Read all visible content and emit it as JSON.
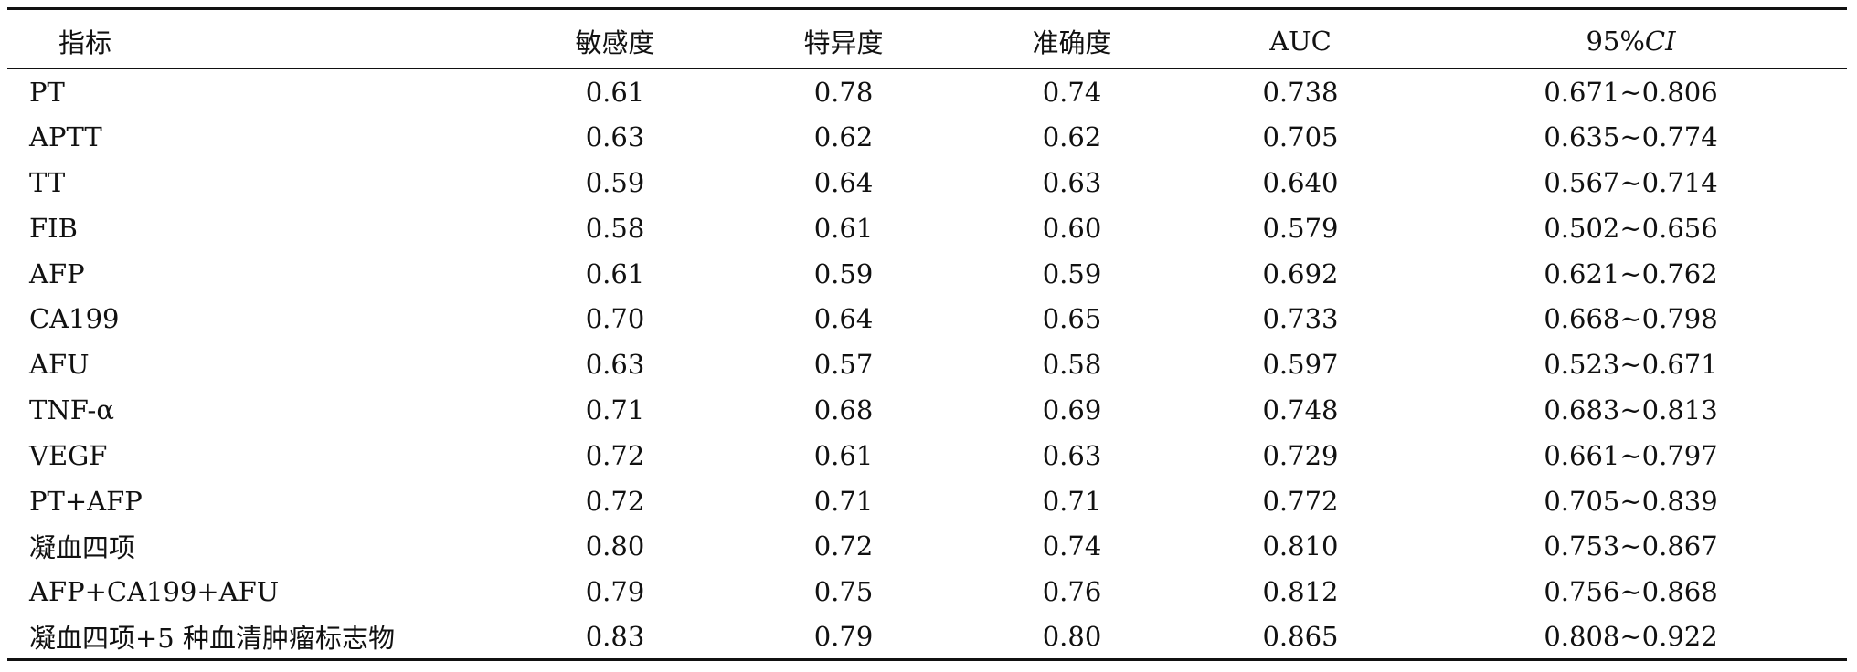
{
  "table": {
    "headers": {
      "indicator": "指标",
      "sensitivity": "敏感度",
      "specificity": "特异度",
      "accuracy": "准确度",
      "auc": "AUC",
      "ci_prefix": "95%",
      "ci_italic": "CI"
    },
    "rows": [
      {
        "indicator": "PT",
        "sensitivity": "0.61",
        "specificity": "0.78",
        "accuracy": "0.74",
        "auc": "0.738",
        "ci": "0.671~0.806"
      },
      {
        "indicator": "APTT",
        "sensitivity": "0.63",
        "specificity": "0.62",
        "accuracy": "0.62",
        "auc": "0.705",
        "ci": "0.635~0.774"
      },
      {
        "indicator": "TT",
        "sensitivity": "0.59",
        "specificity": "0.64",
        "accuracy": "0.63",
        "auc": "0.640",
        "ci": "0.567~0.714"
      },
      {
        "indicator": "FIB",
        "sensitivity": "0.58",
        "specificity": "0.61",
        "accuracy": "0.60",
        "auc": "0.579",
        "ci": "0.502~0.656"
      },
      {
        "indicator": "AFP",
        "sensitivity": "0.61",
        "specificity": "0.59",
        "accuracy": "0.59",
        "auc": "0.692",
        "ci": "0.621~0.762"
      },
      {
        "indicator": "CA199",
        "sensitivity": "0.70",
        "specificity": "0.64",
        "accuracy": "0.65",
        "auc": "0.733",
        "ci": "0.668~0.798"
      },
      {
        "indicator": "AFU",
        "sensitivity": "0.63",
        "specificity": "0.57",
        "accuracy": "0.58",
        "auc": "0.597",
        "ci": "0.523~0.671"
      },
      {
        "indicator": "TNF-α",
        "sensitivity": "0.71",
        "specificity": "0.68",
        "accuracy": "0.69",
        "auc": "0.748",
        "ci": "0.683~0.813"
      },
      {
        "indicator": "VEGF",
        "sensitivity": "0.72",
        "specificity": "0.61",
        "accuracy": "0.63",
        "auc": "0.729",
        "ci": "0.661~0.797"
      },
      {
        "indicator": "PT+AFP",
        "sensitivity": "0.72",
        "specificity": "0.71",
        "accuracy": "0.71",
        "auc": "0.772",
        "ci": "0.705~0.839"
      },
      {
        "indicator": "凝血四项",
        "sensitivity": "0.80",
        "specificity": "0.72",
        "accuracy": "0.74",
        "auc": "0.810",
        "ci": "0.753~0.867"
      },
      {
        "indicator": "AFP+CA199+AFU",
        "sensitivity": "0.79",
        "specificity": "0.75",
        "accuracy": "0.76",
        "auc": "0.812",
        "ci": "0.756~0.868"
      },
      {
        "indicator": "凝血四项+5 种血清肿瘤标志物",
        "sensitivity": "0.83",
        "specificity": "0.79",
        "accuracy": "0.80",
        "auc": "0.865",
        "ci": "0.808~0.922"
      }
    ]
  }
}
